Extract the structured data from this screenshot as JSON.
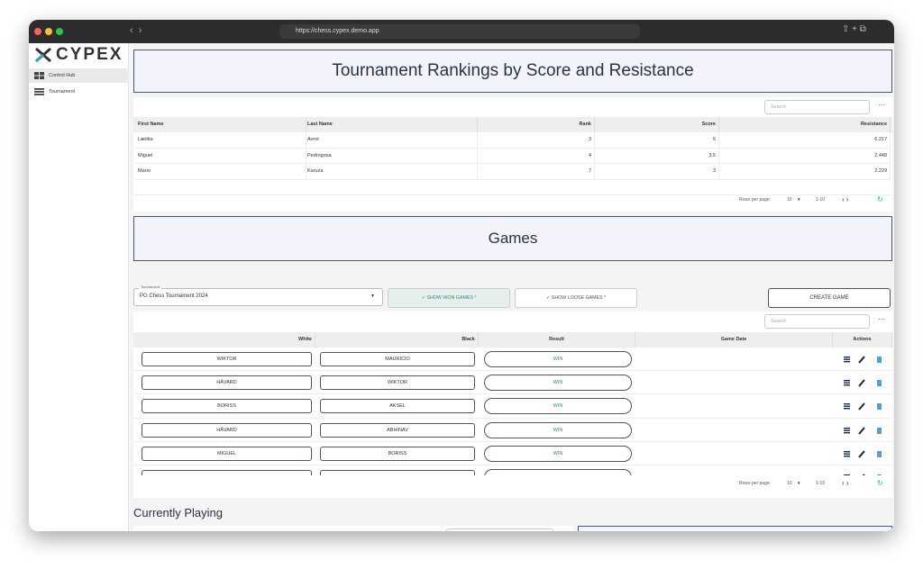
{
  "browser": {
    "url": "https://chess.cypex.demo.app"
  },
  "sidebar": {
    "logo": "CYPEX",
    "items": [
      "Control Hub",
      "Tournament"
    ]
  },
  "rankings": {
    "title": "Tournament Rankings by Score and Resistance",
    "search_placeholder": "Search",
    "columns": [
      "First Name",
      "Last Name",
      "Rank",
      "Score",
      "Resistance"
    ],
    "rows": [
      [
        "Lætitia",
        "Avrot",
        3,
        6,
        6.217
      ],
      [
        "Miguel",
        "Pedrogosa",
        4,
        3.5,
        2.448
      ],
      [
        "Mario",
        "Karuza",
        7,
        3,
        2.229
      ]
    ],
    "pagination": {
      "rows_per_page_label": "Rows per page:",
      "rows_per_page": 10,
      "range": "1-10"
    }
  },
  "games": {
    "title": "Games",
    "tournament_label": "Tournament",
    "tournament": "PG Chess Tournament 2024",
    "filters": [
      "SHOW WON GAMES *",
      "SHOW LOOSE GAMES *"
    ],
    "create_button": "CREATE GAME",
    "search_placeholder": "Search",
    "columns": [
      "White",
      "Black",
      "Result",
      "Game Date",
      "Actions"
    ],
    "rows": [
      {
        "white": "WIKTOR",
        "black": "MAURICIO",
        "result": "WIN"
      },
      {
        "white": "HÅVARD",
        "black": "WIKTOR",
        "result": "WIN"
      },
      {
        "white": "BORISS",
        "black": "AKSEL",
        "result": "WIN"
      },
      {
        "white": "HÅVARD",
        "black": "ABHINAV",
        "result": "WIN"
      },
      {
        "white": "MIGUEL",
        "black": "BORISS",
        "result": "WIN"
      }
    ],
    "pagination": {
      "rows_per_page_label": "Rows per page:",
      "rows_per_page": 10,
      "range": "1-10"
    }
  },
  "currently_playing": {
    "title": "Currently Playing"
  }
}
